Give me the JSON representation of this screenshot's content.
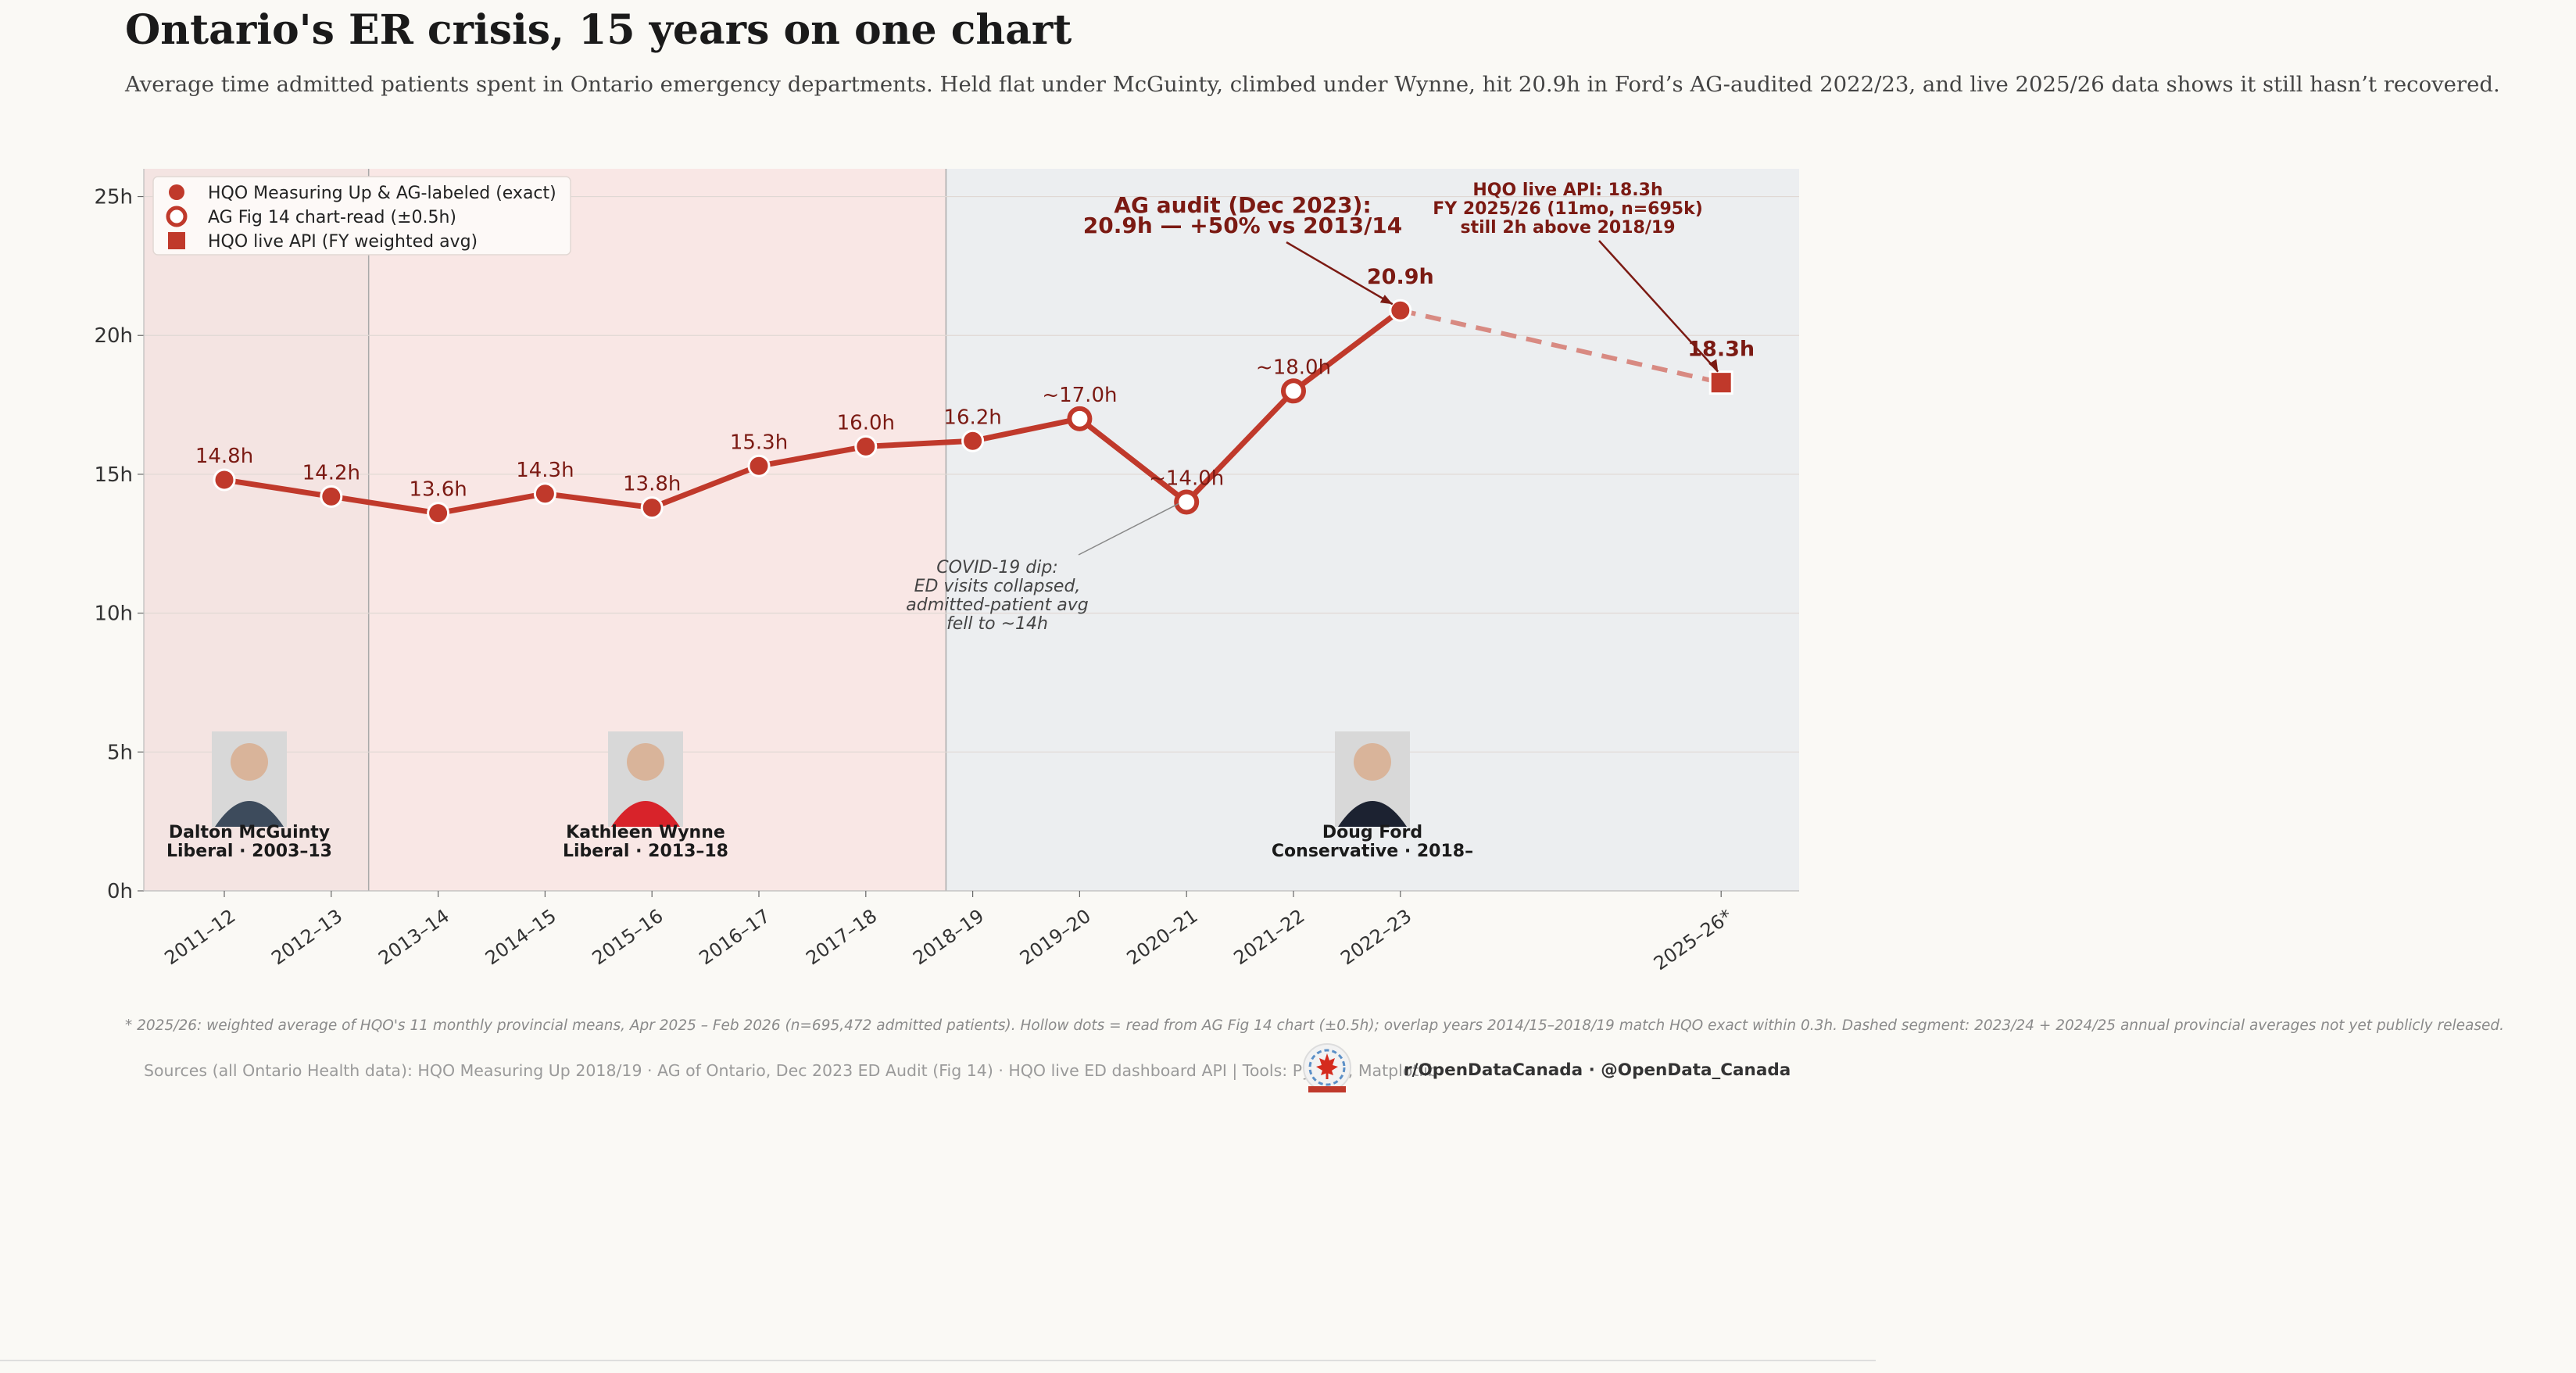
{
  "header": {
    "title": "Ontario's ER crisis, 15 years on one chart",
    "subtitle": "Average time admitted patients spent in Ontario emergency departments. Held flat under McGuinty, climbed under Wynne, hit 20.9h in Ford’s AG-audited 2022/23, and live 2025/26 data shows it still hasn’t recovered."
  },
  "chart_data": {
    "type": "line",
    "ylim": [
      0,
      26
    ],
    "y_ticks": [
      0,
      5,
      10,
      15,
      20,
      25
    ],
    "y_tick_labels": [
      "0h",
      "5h",
      "10h",
      "15h",
      "20h",
      "25h"
    ],
    "grid": true,
    "legend_position": "top-left",
    "categories": [
      "2011–12",
      "2012–13",
      "2013–14",
      "2014–15",
      "2015–16",
      "2016–17",
      "2017–18",
      "2018–19",
      "2019–20",
      "2020–21",
      "2021–22",
      "2022–23",
      "2025–26*"
    ],
    "category_index": [
      0,
      1,
      2,
      3,
      4,
      5,
      6,
      7,
      8,
      9,
      10,
      11,
      14
    ],
    "legend": [
      {
        "label": "HQO Measuring Up & AG-labeled (exact)",
        "marker": "filled-circle"
      },
      {
        "label": "AG Fig 14 chart-read (±0.5h)",
        "marker": "hollow-circle"
      },
      {
        "label": "HQO live API (FY weighted avg)",
        "marker": "square"
      }
    ],
    "series": [
      {
        "style": "solid",
        "points": [
          {
            "x": "2011–12",
            "y": 14.8,
            "label": "14.8h",
            "marker": "filled-circle"
          },
          {
            "x": "2012–13",
            "y": 14.2,
            "label": "14.2h",
            "marker": "filled-circle"
          },
          {
            "x": "2013–14",
            "y": 13.6,
            "label": "13.6h",
            "marker": "filled-circle"
          },
          {
            "x": "2014–15",
            "y": 14.3,
            "label": "14.3h",
            "marker": "filled-circle"
          },
          {
            "x": "2015–16",
            "y": 13.8,
            "label": "13.8h",
            "marker": "filled-circle"
          },
          {
            "x": "2016–17",
            "y": 15.3,
            "label": "15.3h",
            "marker": "filled-circle"
          },
          {
            "x": "2017–18",
            "y": 16.0,
            "label": "16.0h",
            "marker": "filled-circle"
          },
          {
            "x": "2018–19",
            "y": 16.2,
            "label": "16.2h",
            "marker": "filled-circle"
          },
          {
            "x": "2019–20",
            "y": 17.0,
            "label": "~17.0h",
            "marker": "hollow-circle"
          },
          {
            "x": "2020–21",
            "y": 14.0,
            "label": "~14.0h",
            "marker": "hollow-circle"
          },
          {
            "x": "2021–22",
            "y": 18.0,
            "label": "~18.0h",
            "marker": "hollow-circle"
          },
          {
            "x": "2022–23",
            "y": 20.9,
            "label": "20.9h",
            "marker": "filled-circle"
          }
        ]
      },
      {
        "style": "dashed",
        "points": [
          {
            "x": "2022–23",
            "y": 20.9
          },
          {
            "x": "2025–26*",
            "y": 18.3,
            "label": "18.3h",
            "marker": "square"
          }
        ]
      }
    ],
    "eras": [
      {
        "name": "Dalton McGuinty",
        "detail": "Liberal · 2003–13",
        "from": -0.75,
        "to": 1.35,
        "color": "#f4e4e2"
      },
      {
        "name": "Kathleen Wynne",
        "detail": "Liberal · 2013–18",
        "from": 1.35,
        "to": 6.75,
        "color": "#f9e7e5"
      },
      {
        "name": "Doug Ford",
        "detail": "Conservative · 2018–",
        "from": 6.75,
        "to": 14.75,
        "color": "#eceef0"
      }
    ],
    "annotations": [
      {
        "lines": [
          "AG audit (Dec 2023):",
          "20.9h — +50% vs 2013/14"
        ],
        "target": "2022–23",
        "target_y": 20.9,
        "style": "bold-large"
      },
      {
        "lines": [
          "HQO live API: 18.3h",
          "FY 2025/26 (11mo, n=695k)",
          "still 2h above 2018/19"
        ],
        "target": "2025–26*",
        "target_y": 18.3,
        "style": "bold-small"
      },
      {
        "lines": [
          "COVID-19 dip:",
          "ED visits collapsed,",
          "admitted-patient avg",
          "fell to ~14h"
        ],
        "target": "2020–21",
        "target_y": 14.0,
        "style": "italic-grey"
      }
    ],
    "colors": {
      "line": "#c0392b",
      "dark_red": "#7b1a13",
      "dashed": "#d88a82"
    }
  },
  "footer": {
    "footnote": "* 2025/26: weighted average of HQO's 11 monthly provincial means, Apr 2025 – Feb 2026 (n=695,472 admitted patients).  Hollow dots = read from AG Fig 14 chart (±0.5h); overlap years 2014/15–2018/19 match HQO exact within 0.3h.  Dashed segment: 2023/24 + 2024/25 annual provincial averages not yet publicly released.",
    "sources": "Sources (all Ontario Health data): HQO Measuring Up 2018/19 · AG of Ontario, Dec 2023 ED Audit (Fig 14) · HQO live ED dashboard API  |  Tools: Python, Matplotlib",
    "handles": "r/OpenDataCanada  ·  @OpenData_Canada"
  }
}
